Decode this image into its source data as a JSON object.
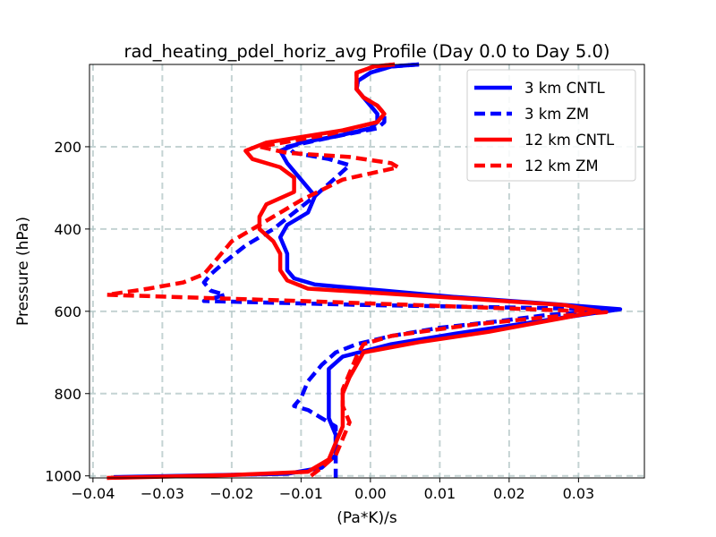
{
  "chart_data": {
    "type": "line",
    "title": "rad_heating_pdel_horiz_avg Profile (Day 0.0 to Day 5.0)",
    "xlabel": "(Pa*K)/s",
    "ylabel": "Pressure (hPa)",
    "xlim": [
      -0.0405,
      0.0395
    ],
    "ylim": [
      1005,
      0
    ],
    "y_inverted": true,
    "grid": true,
    "legend_position": "top-right",
    "x_ticks": [
      -0.04,
      -0.03,
      -0.02,
      -0.01,
      0.0,
      0.01,
      0.02,
      0.03
    ],
    "x_tick_labels": [
      "−0.04",
      "−0.03",
      "−0.02",
      "−0.01",
      "0.00",
      "0.01",
      "0.02",
      "0.03"
    ],
    "y_ticks": [
      200,
      400,
      600,
      800,
      1000
    ],
    "y_tick_labels": [
      "200",
      "400",
      "600",
      "800",
      "1000"
    ],
    "series": [
      {
        "name": "3 km CNTL",
        "color": "#0000ff",
        "style": "solid",
        "points": [
          [
            0.007,
            0
          ],
          [
            0.003,
            5
          ],
          [
            0.0,
            20
          ],
          [
            -0.0018,
            40
          ],
          [
            -0.002,
            60
          ],
          [
            -0.001,
            80
          ],
          [
            0.0,
            100
          ],
          [
            0.001,
            120
          ],
          [
            0.001,
            140
          ],
          [
            0.0,
            155
          ],
          [
            -0.005,
            175
          ],
          [
            -0.01,
            190
          ],
          [
            -0.013,
            210
          ],
          [
            -0.012,
            240
          ],
          [
            -0.01,
            280
          ],
          [
            -0.008,
            320
          ],
          [
            -0.009,
            360
          ],
          [
            -0.012,
            390
          ],
          [
            -0.013,
            420
          ],
          [
            -0.012,
            460
          ],
          [
            -0.012,
            500
          ],
          [
            -0.011,
            520
          ],
          [
            -0.008,
            535
          ],
          [
            0.002,
            550
          ],
          [
            0.012,
            565
          ],
          [
            0.026,
            582
          ],
          [
            0.036,
            595
          ],
          [
            0.03,
            610
          ],
          [
            0.022,
            630
          ],
          [
            0.012,
            655
          ],
          [
            0.003,
            680
          ],
          [
            -0.004,
            710
          ],
          [
            -0.006,
            740
          ],
          [
            -0.006,
            770
          ],
          [
            -0.006,
            800
          ],
          [
            -0.006,
            830
          ],
          [
            -0.006,
            860
          ],
          [
            -0.005,
            900
          ],
          [
            -0.005,
            950
          ],
          [
            -0.007,
            980
          ],
          [
            -0.012,
            995
          ],
          [
            -0.037,
            1003
          ]
        ]
      },
      {
        "name": "3 km ZM",
        "color": "#0000ff",
        "style": "dashed",
        "points": [
          [
            0.007,
            0
          ],
          [
            0.003,
            5
          ],
          [
            0.0,
            20
          ],
          [
            -0.0018,
            40
          ],
          [
            -0.002,
            60
          ],
          [
            -0.001,
            80
          ],
          [
            0.001,
            100
          ],
          [
            0.002,
            120
          ],
          [
            0.002,
            140
          ],
          [
            0.001,
            155
          ],
          [
            -0.005,
            175
          ],
          [
            -0.012,
            200
          ],
          [
            -0.011,
            215
          ],
          [
            -0.006,
            230
          ],
          [
            -0.003,
            245
          ],
          [
            -0.004,
            260
          ],
          [
            -0.006,
            290
          ],
          [
            -0.008,
            320
          ],
          [
            -0.011,
            360
          ],
          [
            -0.014,
            400
          ],
          [
            -0.018,
            440
          ],
          [
            -0.021,
            480
          ],
          [
            -0.023,
            510
          ],
          [
            -0.024,
            530
          ],
          [
            -0.023,
            550
          ],
          [
            -0.021,
            560
          ],
          [
            -0.024,
            575
          ],
          [
            0.0,
            585
          ],
          [
            0.035,
            595
          ],
          [
            0.025,
            610
          ],
          [
            0.018,
            625
          ],
          [
            0.01,
            640
          ],
          [
            0.003,
            660
          ],
          [
            -0.002,
            680
          ],
          [
            -0.005,
            700
          ],
          [
            -0.007,
            730
          ],
          [
            -0.009,
            770
          ],
          [
            -0.01,
            810
          ],
          [
            -0.011,
            830
          ],
          [
            -0.009,
            840
          ],
          [
            -0.007,
            860
          ],
          [
            -0.005,
            880
          ],
          [
            -0.005,
            900
          ],
          [
            -0.005,
            940
          ],
          [
            -0.005,
            980
          ],
          [
            -0.005,
            1005
          ]
        ]
      },
      {
        "name": "12 km CNTL",
        "color": "#ff0000",
        "style": "solid",
        "points": [
          [
            0.0035,
            0
          ],
          [
            0.0005,
            5
          ],
          [
            -0.002,
            20
          ],
          [
            -0.002,
            40
          ],
          [
            -0.002,
            60
          ],
          [
            -0.001,
            80
          ],
          [
            0.001,
            100
          ],
          [
            0.002,
            120
          ],
          [
            0.001,
            140
          ],
          [
            -0.004,
            160
          ],
          [
            -0.015,
            190
          ],
          [
            -0.018,
            210
          ],
          [
            -0.017,
            230
          ],
          [
            -0.013,
            250
          ],
          [
            -0.011,
            275
          ],
          [
            -0.011,
            310
          ],
          [
            -0.015,
            340
          ],
          [
            -0.016,
            370
          ],
          [
            -0.016,
            400
          ],
          [
            -0.014,
            430
          ],
          [
            -0.013,
            460
          ],
          [
            -0.013,
            500
          ],
          [
            -0.012,
            525
          ],
          [
            -0.009,
            545
          ],
          [
            0.01,
            565
          ],
          [
            0.028,
            585
          ],
          [
            0.033,
            600
          ],
          [
            0.025,
            625
          ],
          [
            0.017,
            650
          ],
          [
            0.007,
            675
          ],
          [
            -0.001,
            700
          ],
          [
            -0.002,
            730
          ],
          [
            -0.003,
            760
          ],
          [
            -0.004,
            800
          ],
          [
            -0.004,
            840
          ],
          [
            -0.004,
            880
          ],
          [
            -0.005,
            920
          ],
          [
            -0.006,
            960
          ],
          [
            -0.009,
            990
          ],
          [
            -0.02,
            998
          ],
          [
            -0.038,
            1005
          ]
        ]
      },
      {
        "name": "12 km ZM",
        "color": "#ff0000",
        "style": "dashed",
        "points": [
          [
            0.0035,
            0
          ],
          [
            0.0005,
            5
          ],
          [
            -0.002,
            20
          ],
          [
            -0.002,
            40
          ],
          [
            -0.002,
            60
          ],
          [
            -0.001,
            80
          ],
          [
            0.001,
            100
          ],
          [
            0.002,
            120
          ],
          [
            0.001,
            140
          ],
          [
            -0.006,
            170
          ],
          [
            -0.016,
            200
          ],
          [
            -0.012,
            215
          ],
          [
            -0.003,
            225
          ],
          [
            0.003,
            240
          ],
          [
            0.004,
            250
          ],
          [
            -0.004,
            280
          ],
          [
            -0.01,
            330
          ],
          [
            -0.016,
            390
          ],
          [
            -0.02,
            430
          ],
          [
            -0.022,
            470
          ],
          [
            -0.024,
            510
          ],
          [
            -0.027,
            530
          ],
          [
            -0.032,
            545
          ],
          [
            -0.038,
            560
          ],
          [
            -0.01,
            575
          ],
          [
            0.015,
            590
          ],
          [
            0.034,
            602
          ],
          [
            0.025,
            615
          ],
          [
            0.015,
            632
          ],
          [
            0.008,
            648
          ],
          [
            0.003,
            660
          ],
          [
            -0.001,
            680
          ],
          [
            -0.002,
            710
          ],
          [
            -0.003,
            750
          ],
          [
            -0.004,
            790
          ],
          [
            -0.004,
            830
          ],
          [
            -0.003,
            870
          ],
          [
            -0.004,
            910
          ],
          [
            -0.005,
            950
          ],
          [
            -0.007,
            980
          ],
          [
            -0.009,
            1005
          ]
        ]
      }
    ]
  }
}
